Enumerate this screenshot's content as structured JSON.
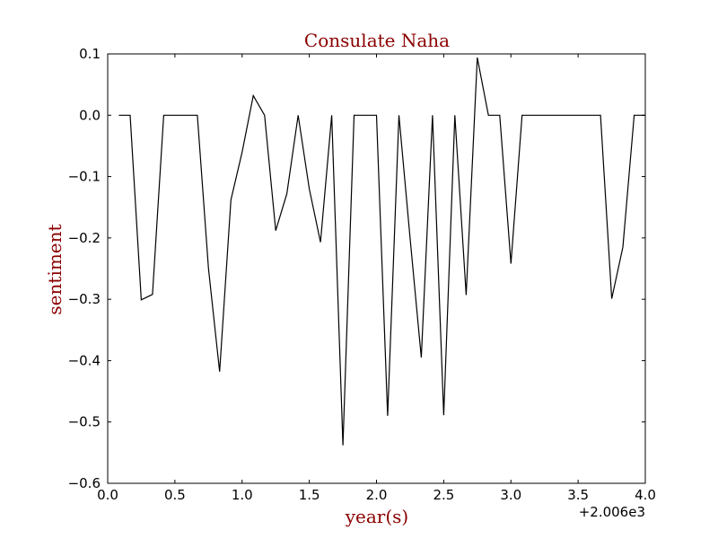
{
  "colors": {
    "title": "#8b0000",
    "line": "#000000",
    "frame": "#000000",
    "background": "#ffffff"
  },
  "chart_data": {
    "type": "line",
    "title": "Consulate Naha",
    "xlabel": "year(s)",
    "ylabel": "sentiment",
    "x_offset_label": "+2.006e3",
    "xlim": [
      0.0,
      4.0
    ],
    "ylim": [
      -0.6,
      0.1
    ],
    "xticks": [
      0.0,
      0.5,
      1.0,
      1.5,
      2.0,
      2.5,
      3.0,
      3.5,
      4.0
    ],
    "xtick_labels": [
      "0.0",
      "0.5",
      "1.0",
      "1.5",
      "2.0",
      "2.5",
      "3.0",
      "3.5",
      "4.0"
    ],
    "yticks": [
      0.1,
      0.0,
      -0.1,
      -0.2,
      -0.3,
      -0.4,
      -0.5,
      -0.6
    ],
    "ytick_labels": [
      "0.1",
      "0.0",
      "−0.1",
      "−0.2",
      "−0.3",
      "−0.4",
      "−0.5",
      "−0.6"
    ],
    "grid": false,
    "series": [
      {
        "x": [
          0.083,
          0.167,
          0.25,
          0.333,
          0.417,
          0.5,
          0.583,
          0.667,
          0.75,
          0.833,
          0.917,
          1.0,
          1.083,
          1.167,
          1.25,
          1.333,
          1.417,
          1.5,
          1.583,
          1.667,
          1.75,
          1.833,
          1.917,
          2.0,
          2.083,
          2.167,
          2.25,
          2.333,
          2.417,
          2.5,
          2.583,
          2.667,
          2.75,
          2.833,
          2.917,
          3.0,
          3.083,
          3.167,
          3.25,
          3.333,
          3.417,
          3.5,
          3.583,
          3.667,
          3.75,
          3.833,
          3.917,
          4.0
        ],
        "y": [
          0.0,
          0.0,
          -0.301,
          -0.292,
          0.0,
          0.0,
          0.0,
          0.0,
          -0.25,
          -0.418,
          -0.138,
          -0.06,
          0.032,
          0.0,
          -0.188,
          -0.128,
          0.0,
          -0.12,
          -0.207,
          0.0,
          -0.538,
          0.0,
          0.0,
          0.0,
          -0.49,
          0.0,
          -0.2,
          -0.395,
          0.0,
          -0.489,
          0.0,
          -0.293,
          0.094,
          0.0,
          0.0,
          -0.242,
          0.0,
          0.0,
          0.0,
          0.0,
          0.0,
          0.0,
          0.0,
          0.0,
          -0.299,
          -0.215,
          0.0,
          0.0
        ]
      }
    ]
  }
}
